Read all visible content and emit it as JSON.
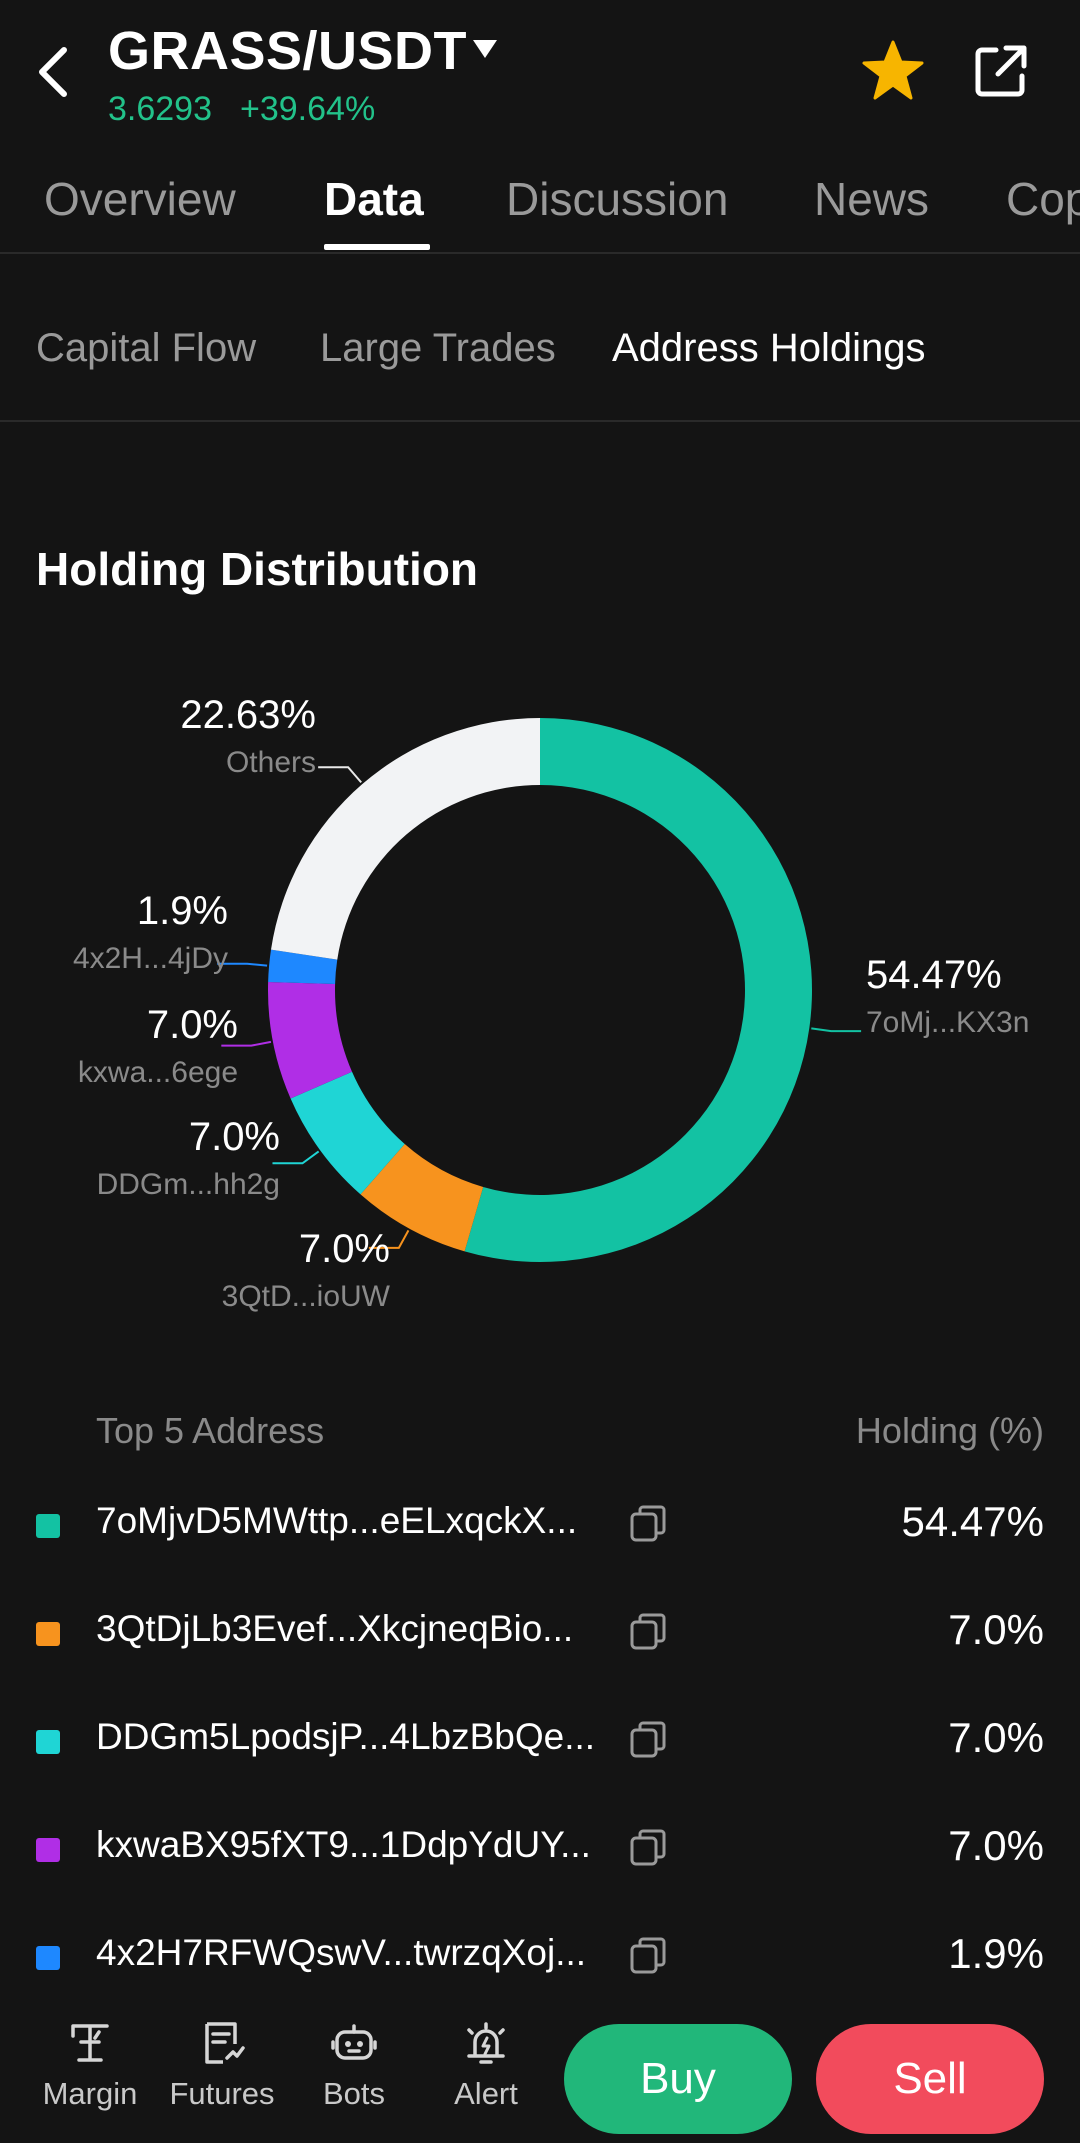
{
  "header": {
    "pair": "GRASS/USDT",
    "price": "3.6293",
    "change": "+39.64%"
  },
  "tabs": [
    {
      "label": "Overview"
    },
    {
      "label": "Data"
    },
    {
      "label": "Discussion"
    },
    {
      "label": "News"
    },
    {
      "label": "Cop"
    }
  ],
  "subtabs": [
    {
      "label": "Capital Flow"
    },
    {
      "label": "Large Trades"
    },
    {
      "label": "Address Holdings"
    }
  ],
  "section_title": "Holding Distribution",
  "chart_data": {
    "type": "pie",
    "unit": "%",
    "slices": [
      {
        "label": "7oMj...KX3n",
        "value": 54.47,
        "display": "54.47%",
        "color": "#13c2a3"
      },
      {
        "label": "3QtD...ioUW",
        "value": 7.0,
        "display": "7.0%",
        "color": "#f7931e"
      },
      {
        "label": "DDGm...hh2g",
        "value": 7.0,
        "display": "7.0%",
        "color": "#1fd5d5"
      },
      {
        "label": "kxwa...6ege",
        "value": 7.0,
        "display": "7.0%",
        "color": "#b02ee6"
      },
      {
        "label": "4x2H...4jDy",
        "value": 1.9,
        "display": "1.9%",
        "color": "#1e88ff"
      },
      {
        "label": "Others",
        "value": 22.63,
        "display": "22.63%",
        "color": "#f2f3f5"
      }
    ]
  },
  "table": {
    "col_address": "Top 5 Address",
    "col_holding": "Holding (%)",
    "rows": [
      {
        "address": "7oMjvD5MWttp...eELxqckX...",
        "holding": "54.47%",
        "color": "#13c2a3"
      },
      {
        "address": "3QtDjLb3Evef...XkcjneqBio...",
        "holding": "7.0%",
        "color": "#f7931e"
      },
      {
        "address": "DDGm5LpodsjP...4LbzBbQe...",
        "holding": "7.0%",
        "color": "#1fd5d5"
      },
      {
        "address": "kxwaBX95fXT9...1DdpYdUY...",
        "holding": "7.0%",
        "color": "#b02ee6"
      },
      {
        "address": "4x2H7RFWQswV...twrzqXoj...",
        "holding": "1.9%",
        "color": "#1e88ff"
      }
    ]
  },
  "bottom_nav": {
    "items": [
      {
        "label": "Margin",
        "icon": "margin-icon"
      },
      {
        "label": "Futures",
        "icon": "futures-icon"
      },
      {
        "label": "Bots",
        "icon": "bots-icon"
      },
      {
        "label": "Alert",
        "icon": "alert-icon"
      }
    ],
    "buy": "Buy",
    "sell": "Sell"
  }
}
